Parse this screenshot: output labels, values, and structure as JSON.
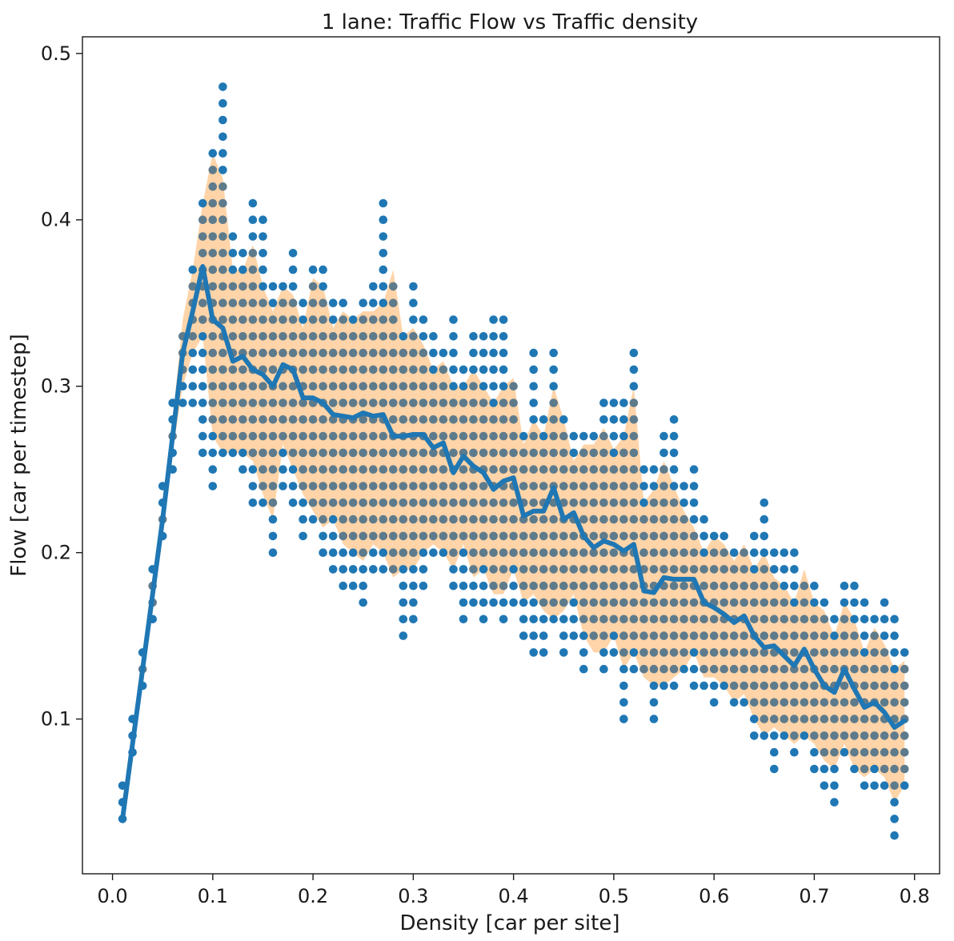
{
  "chart_data": {
    "type": "scatter",
    "title": "1 lane: Traffic Flow vs Traffic density",
    "xlabel": "Density [car per site]",
    "ylabel": "Flow [car per timestep]",
    "xlim": [
      -0.03,
      0.825
    ],
    "ylim": [
      0.007,
      0.51
    ],
    "xticks": [
      "0.0",
      "0.1",
      "0.2",
      "0.3",
      "0.4",
      "0.5",
      "0.6",
      "0.7",
      "0.8"
    ],
    "yticks": [
      "0.1",
      "0.2",
      "0.3",
      "0.4",
      "0.5"
    ],
    "grid": false,
    "legend": "none",
    "colors": {
      "points": "#1f77b4",
      "points_dense": "#5e7b8c",
      "band": "#ffcc99",
      "line": "#1f77b4"
    },
    "series": [
      {
        "kind": "mean_line",
        "x": [
          0.01,
          0.02,
          0.03,
          0.04,
          0.05,
          0.06,
          0.07,
          0.08,
          0.09,
          0.1,
          0.11,
          0.12,
          0.13,
          0.14,
          0.15,
          0.16,
          0.17,
          0.18,
          0.19,
          0.2,
          0.21,
          0.22,
          0.23,
          0.24,
          0.25,
          0.26,
          0.27,
          0.28,
          0.29,
          0.3,
          0.31,
          0.32,
          0.33,
          0.34,
          0.35,
          0.36,
          0.37,
          0.38,
          0.39,
          0.4,
          0.41,
          0.42,
          0.43,
          0.44,
          0.45,
          0.46,
          0.47,
          0.48,
          0.49,
          0.5,
          0.51,
          0.52,
          0.53,
          0.54,
          0.55,
          0.56,
          0.57,
          0.58,
          0.59,
          0.6,
          0.61,
          0.62,
          0.63,
          0.64,
          0.65,
          0.66,
          0.67,
          0.68,
          0.69,
          0.7,
          0.71,
          0.72,
          0.73,
          0.74,
          0.75,
          0.76,
          0.77,
          0.78,
          0.79
        ],
        "y": [
          0.04,
          0.085,
          0.13,
          0.175,
          0.22,
          0.27,
          0.32,
          0.345,
          0.372,
          0.34,
          0.335,
          0.315,
          0.318,
          0.31,
          0.307,
          0.3,
          0.313,
          0.31,
          0.293,
          0.293,
          0.29,
          0.283,
          0.282,
          0.281,
          0.284,
          0.282,
          0.283,
          0.27,
          0.27,
          0.271,
          0.271,
          0.263,
          0.266,
          0.248,
          0.258,
          0.252,
          0.248,
          0.238,
          0.243,
          0.245,
          0.222,
          0.225,
          0.225,
          0.239,
          0.22,
          0.224,
          0.21,
          0.203,
          0.207,
          0.205,
          0.201,
          0.205,
          0.177,
          0.176,
          0.185,
          0.184,
          0.184,
          0.184,
          0.17,
          0.167,
          0.163,
          0.158,
          0.162,
          0.15,
          0.143,
          0.144,
          0.138,
          0.132,
          0.142,
          0.13,
          0.12,
          0.116,
          0.13,
          0.118,
          0.107,
          0.11,
          0.104,
          0.095,
          0.099
        ]
      },
      {
        "kind": "band",
        "x": [
          0.01,
          0.02,
          0.03,
          0.04,
          0.05,
          0.06,
          0.07,
          0.08,
          0.09,
          0.1,
          0.11,
          0.12,
          0.13,
          0.14,
          0.15,
          0.16,
          0.17,
          0.18,
          0.19,
          0.2,
          0.21,
          0.22,
          0.23,
          0.24,
          0.25,
          0.26,
          0.27,
          0.28,
          0.29,
          0.3,
          0.31,
          0.32,
          0.33,
          0.34,
          0.35,
          0.36,
          0.37,
          0.38,
          0.39,
          0.4,
          0.41,
          0.42,
          0.43,
          0.44,
          0.45,
          0.46,
          0.47,
          0.48,
          0.49,
          0.5,
          0.51,
          0.52,
          0.53,
          0.54,
          0.55,
          0.56,
          0.57,
          0.58,
          0.59,
          0.6,
          0.61,
          0.62,
          0.63,
          0.64,
          0.65,
          0.66,
          0.67,
          0.68,
          0.69,
          0.7,
          0.71,
          0.72,
          0.73,
          0.74,
          0.75,
          0.76,
          0.77,
          0.78,
          0.79
        ],
        "upper": [
          0.042,
          0.09,
          0.14,
          0.185,
          0.23,
          0.28,
          0.34,
          0.37,
          0.41,
          0.44,
          0.425,
          0.37,
          0.37,
          0.385,
          0.36,
          0.345,
          0.36,
          0.355,
          0.335,
          0.365,
          0.36,
          0.335,
          0.345,
          0.34,
          0.345,
          0.345,
          0.35,
          0.37,
          0.33,
          0.335,
          0.325,
          0.31,
          0.315,
          0.3,
          0.3,
          0.31,
          0.3,
          0.29,
          0.3,
          0.305,
          0.265,
          0.28,
          0.27,
          0.3,
          0.28,
          0.255,
          0.265,
          0.265,
          0.275,
          0.262,
          0.27,
          0.3,
          0.23,
          0.238,
          0.255,
          0.24,
          0.225,
          0.215,
          0.2,
          0.21,
          0.205,
          0.195,
          0.205,
          0.19,
          0.2,
          0.185,
          0.18,
          0.17,
          0.19,
          0.17,
          0.165,
          0.15,
          0.17,
          0.16,
          0.14,
          0.155,
          0.145,
          0.13,
          0.135
        ],
        "lower": [
          0.038,
          0.08,
          0.12,
          0.165,
          0.21,
          0.26,
          0.3,
          0.32,
          0.33,
          0.27,
          0.26,
          0.26,
          0.26,
          0.255,
          0.235,
          0.22,
          0.265,
          0.25,
          0.235,
          0.225,
          0.215,
          0.22,
          0.205,
          0.2,
          0.195,
          0.205,
          0.2,
          0.185,
          0.19,
          0.19,
          0.2,
          0.205,
          0.2,
          0.19,
          0.205,
          0.185,
          0.19,
          0.175,
          0.175,
          0.19,
          0.17,
          0.175,
          0.165,
          0.16,
          0.165,
          0.175,
          0.15,
          0.14,
          0.14,
          0.15,
          0.13,
          0.14,
          0.125,
          0.12,
          0.12,
          0.125,
          0.13,
          0.14,
          0.125,
          0.125,
          0.12,
          0.11,
          0.115,
          0.1,
          0.09,
          0.095,
          0.09,
          0.085,
          0.09,
          0.085,
          0.075,
          0.07,
          0.085,
          0.07,
          0.065,
          0.07,
          0.065,
          0.05,
          0.06
        ]
      },
      {
        "kind": "points",
        "x": [
          0.01,
          0.02,
          0.03,
          0.04,
          0.05,
          0.06,
          0.07,
          0.08,
          0.09,
          0.1,
          0.11,
          0.12,
          0.13,
          0.14,
          0.15,
          0.16,
          0.17,
          0.18,
          0.19,
          0.2,
          0.21,
          0.22,
          0.23,
          0.24,
          0.25,
          0.26,
          0.27,
          0.28,
          0.29,
          0.3,
          0.31,
          0.32,
          0.33,
          0.34,
          0.35,
          0.36,
          0.37,
          0.38,
          0.39,
          0.4,
          0.41,
          0.42,
          0.43,
          0.44,
          0.45,
          0.46,
          0.47,
          0.48,
          0.49,
          0.5,
          0.51,
          0.52,
          0.53,
          0.54,
          0.55,
          0.56,
          0.57,
          0.58,
          0.59,
          0.6,
          0.61,
          0.62,
          0.63,
          0.64,
          0.65,
          0.66,
          0.67,
          0.68,
          0.69,
          0.7,
          0.71,
          0.72,
          0.73,
          0.74,
          0.75,
          0.76,
          0.77,
          0.78,
          0.79
        ],
        "ymin": [
          0.04,
          0.08,
          0.12,
          0.16,
          0.21,
          0.25,
          0.29,
          0.29,
          0.26,
          0.24,
          0.26,
          0.26,
          0.25,
          0.23,
          0.23,
          0.2,
          0.24,
          0.23,
          0.21,
          0.22,
          0.2,
          0.19,
          0.18,
          0.18,
          0.17,
          0.19,
          0.19,
          0.19,
          0.15,
          0.16,
          0.18,
          0.2,
          0.2,
          0.18,
          0.16,
          0.17,
          0.16,
          0.17,
          0.16,
          0.17,
          0.15,
          0.14,
          0.14,
          0.16,
          0.14,
          0.15,
          0.13,
          0.15,
          0.13,
          0.14,
          0.1,
          0.13,
          0.13,
          0.1,
          0.12,
          0.12,
          0.13,
          0.12,
          0.12,
          0.11,
          0.12,
          0.11,
          0.11,
          0.09,
          0.09,
          0.07,
          0.09,
          0.08,
          0.09,
          0.07,
          0.06,
          0.05,
          0.08,
          0.07,
          0.06,
          0.06,
          0.06,
          0.03,
          0.06
        ],
        "ymax": [
          0.06,
          0.1,
          0.14,
          0.19,
          0.24,
          0.29,
          0.33,
          0.37,
          0.41,
          0.44,
          0.48,
          0.39,
          0.38,
          0.41,
          0.4,
          0.36,
          0.36,
          0.38,
          0.35,
          0.37,
          0.37,
          0.35,
          0.35,
          0.34,
          0.35,
          0.36,
          0.41,
          0.36,
          0.33,
          0.36,
          0.34,
          0.33,
          0.32,
          0.34,
          0.31,
          0.33,
          0.33,
          0.34,
          0.34,
          0.3,
          0.27,
          0.32,
          0.28,
          0.32,
          0.28,
          0.27,
          0.27,
          0.27,
          0.29,
          0.29,
          0.29,
          0.32,
          0.25,
          0.25,
          0.27,
          0.28,
          0.24,
          0.25,
          0.22,
          0.21,
          0.21,
          0.2,
          0.2,
          0.21,
          0.23,
          0.2,
          0.2,
          0.2,
          0.18,
          0.18,
          0.17,
          0.16,
          0.18,
          0.18,
          0.17,
          0.16,
          0.17,
          0.16,
          0.14
        ]
      }
    ]
  }
}
